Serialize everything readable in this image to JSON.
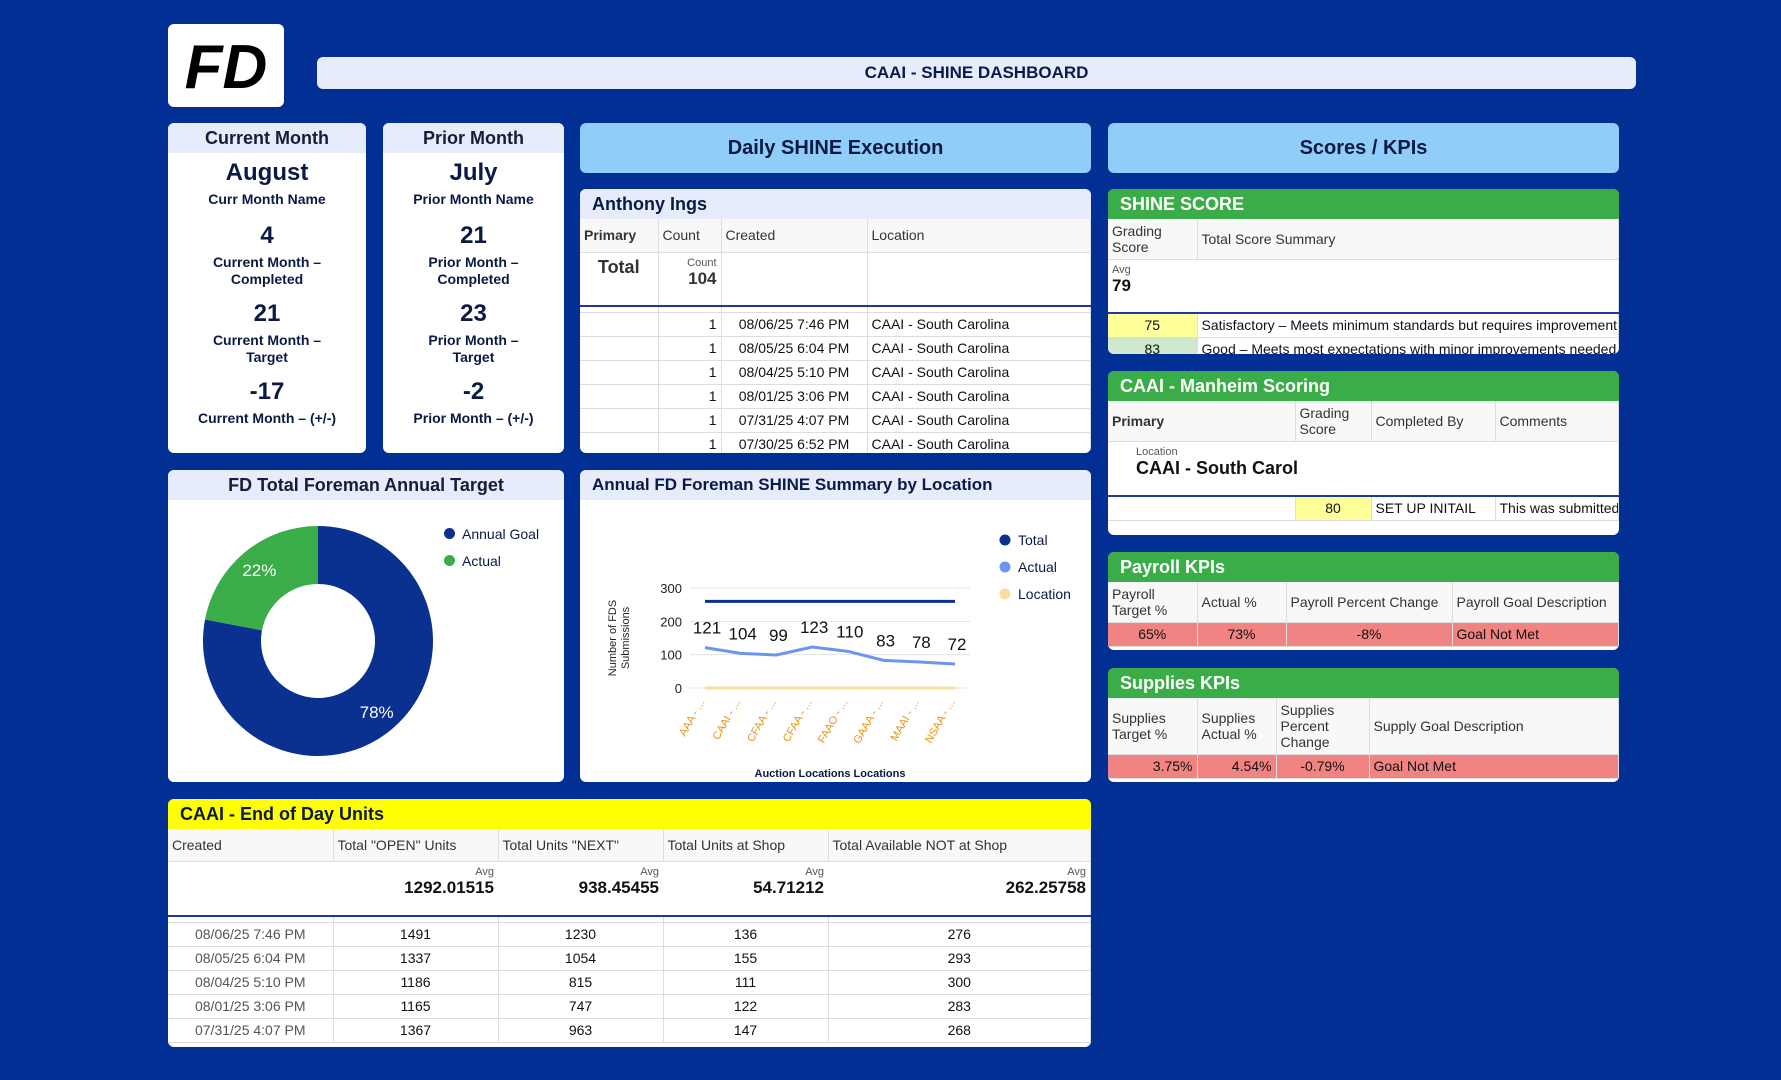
{
  "header": {
    "logo_text": "FD",
    "title": "CAAI - SHINE DASHBOARD"
  },
  "current_month": {
    "title": "Current Month",
    "name": "August",
    "name_label": "Curr Month Name",
    "completed": "4",
    "completed_label": "Current Month – Completed",
    "target": "21",
    "target_label": "Current Month – Target",
    "diff": "-17",
    "diff_label": "Current Month – (+/-)"
  },
  "prior_month": {
    "title": "Prior Month",
    "name": "July",
    "name_label": "Prior Month Name",
    "completed": "21",
    "completed_label": "Prior Month – Completed",
    "target": "23",
    "target_label": "Prior Month – Target",
    "diff": "-2",
    "diff_label": "Prior Month – (+/-)"
  },
  "daily_header": "Daily SHINE Execution",
  "scores_header": "Scores / KPIs",
  "anthony": {
    "title": "Anthony Ings",
    "columns": [
      "Primary",
      "Count",
      "Created",
      "Location"
    ],
    "total_label": "Total",
    "count_label": "Count",
    "count_total": "104",
    "rows": [
      {
        "count": "1",
        "created": "08/06/25 7:46 PM",
        "location": "CAAI - South Carolina"
      },
      {
        "count": "1",
        "created": "08/05/25 6:04 PM",
        "location": "CAAI - South Carolina"
      },
      {
        "count": "1",
        "created": "08/04/25 5:10 PM",
        "location": "CAAI - South Carolina"
      },
      {
        "count": "1",
        "created": "08/01/25 3:06 PM",
        "location": "CAAI - South Carolina"
      },
      {
        "count": "1",
        "created": "07/31/25 4:07 PM",
        "location": "CAAI - South Carolina"
      },
      {
        "count": "1",
        "created": "07/30/25 6:52 PM",
        "location": "CAAI - South Carolina"
      }
    ]
  },
  "shine_score": {
    "title": "SHINE SCORE",
    "columns": [
      "Grading Score",
      "Total Score Summary"
    ],
    "avg_label": "Avg",
    "avg": "79",
    "rows": [
      {
        "score": "75",
        "summary": "Satisfactory – Meets minimum standards but requires improvement"
      },
      {
        "score": "83",
        "summary": "Good – Meets most expectations with minor improvements needed"
      }
    ]
  },
  "manheim": {
    "title": "CAAI - Manheim Scoring",
    "columns": [
      "Primary",
      "Grading Score",
      "Completed By",
      "Comments"
    ],
    "location_label": "Location",
    "location": "CAAI - South Carol",
    "row": {
      "score": "80",
      "completed_by": "SET UP INITAIL",
      "comments": "This was submitted"
    }
  },
  "payroll": {
    "title": "Payroll KPIs",
    "columns": [
      "Payroll Target %",
      "Actual %",
      "Payroll Percent Change",
      "Payroll Goal Description"
    ],
    "row": {
      "target": "65%",
      "actual": "73%",
      "change": "-8%",
      "desc": "Goal Not Met"
    }
  },
  "supplies": {
    "title": "Supplies KPIs",
    "columns": [
      "Supplies Target %",
      "Supplies Actual %",
      "Supplies Percent Change",
      "Supply Goal Description"
    ],
    "row": {
      "target": "3.75%",
      "actual": "4.54%",
      "change": "-0.79%",
      "desc": "Goal Not Met"
    }
  },
  "donut": {
    "title": "FD Total Foreman Annual Target",
    "legend": [
      "Annual Goal",
      "Actual"
    ],
    "colors": {
      "goal": "#0a318f",
      "actual": "#3aac48"
    }
  },
  "line_chart_title": "Annual FD Foreman SHINE Summary by Location",
  "chart_data": [
    {
      "type": "pie",
      "title": "FD Total Foreman Annual Target",
      "categories": [
        "Annual Goal",
        "Actual"
      ],
      "values": [
        78,
        22
      ],
      "labels": [
        "78%",
        "22%"
      ],
      "legend": "right"
    },
    {
      "type": "line",
      "title": "Annual FD Foreman SHINE Summary by Location",
      "categories": [
        "AAA - ...",
        "CAAI - ...",
        "CFAA - ...",
        "CFAA - ...",
        "FAAO - ...",
        "GAAA - ...",
        "MAAI - ...",
        "NSAA - ..."
      ],
      "series": [
        {
          "name": "Total",
          "values": [
            260,
            260,
            260,
            260,
            260,
            260,
            260,
            260
          ],
          "color": "#0a318f"
        },
        {
          "name": "Actual",
          "values": [
            121,
            104,
            99,
            123,
            110,
            83,
            78,
            72
          ],
          "color": "#6c95f0"
        },
        {
          "name": "Location",
          "values": [
            0,
            0,
            0,
            0,
            0,
            0,
            0,
            0
          ],
          "color": "#f8dca0"
        }
      ],
      "data_labels": [
        "121",
        "104",
        "99",
        "123",
        "110",
        "83",
        "78",
        "72"
      ],
      "xlabel": "Auction Locations Locations",
      "ylabel": "Number of FDS Submissions",
      "yticks": [
        "0",
        "100",
        "200",
        "300"
      ],
      "ylim": [
        0,
        300
      ],
      "legend": "right"
    }
  ],
  "eod": {
    "title": "CAAI - End of Day Units",
    "columns": [
      "Created",
      "Total \"OPEN\" Units",
      "Total Units \"NEXT\"",
      "Total Units at Shop",
      "Total Available NOT at Shop"
    ],
    "avg_label": "Avg",
    "avgs": [
      "1292.01515",
      "938.45455",
      "54.71212",
      "262.25758"
    ],
    "rows": [
      [
        "08/06/25 7:46 PM",
        "1491",
        "1230",
        "136",
        "276"
      ],
      [
        "08/05/25 6:04 PM",
        "1337",
        "1054",
        "155",
        "293"
      ],
      [
        "08/04/25 5:10 PM",
        "1186",
        "815",
        "111",
        "300"
      ],
      [
        "08/01/25 3:06 PM",
        "1165",
        "747",
        "122",
        "283"
      ],
      [
        "07/31/25 4:07 PM",
        "1367",
        "963",
        "147",
        "268"
      ]
    ]
  }
}
